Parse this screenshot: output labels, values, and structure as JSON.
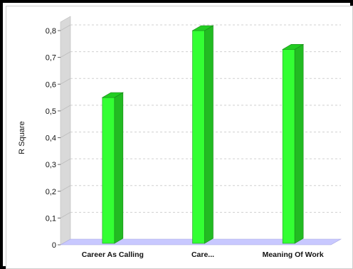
{
  "chart_data": {
    "type": "bar",
    "categories": [
      "Career As Calling",
      "Care...",
      "Meaning Of Work"
    ],
    "values": [
      0.55,
      0.8,
      0.73
    ],
    "title": "",
    "xlabel": "",
    "ylabel": "R Square",
    "ylim": [
      0,
      0.8
    ],
    "yticks": [
      0,
      0.1,
      0.2,
      0.3,
      0.4,
      0.5,
      0.6,
      0.7,
      0.8
    ],
    "ytick_labels": [
      "0",
      "0,1",
      "0,2",
      "0,3",
      "0,4",
      "0,5",
      "0,6",
      "0,7",
      "0,8"
    ],
    "grid": true,
    "legend": "none",
    "style": "3d",
    "colors": {
      "bar_front": "#33ff33",
      "bar_side": "#22bb22",
      "bar_top": "#22cc22",
      "floor": "#c8c8ff",
      "wall": "#d9d9d9",
      "grid": "#d0d0d0"
    }
  }
}
